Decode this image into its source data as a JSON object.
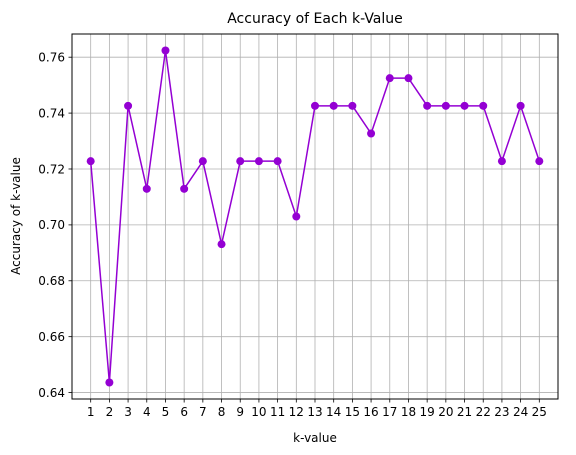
{
  "chart_data": {
    "type": "line",
    "title": "Accuracy of Each k-Value",
    "xlabel": "k-value",
    "ylabel": "Accuracy of k-value",
    "x": [
      1,
      2,
      3,
      4,
      5,
      6,
      7,
      8,
      9,
      10,
      11,
      12,
      13,
      14,
      15,
      16,
      17,
      18,
      19,
      20,
      21,
      22,
      23,
      24,
      25
    ],
    "xtick_labels": [
      "1",
      "2",
      "3",
      "4",
      "5",
      "6",
      "7",
      "8",
      "9",
      "10",
      "11",
      "12",
      "13",
      "14",
      "15",
      "16",
      "17",
      "18",
      "19",
      "20",
      "21",
      "22",
      "23",
      "24",
      "25"
    ],
    "series": [
      {
        "values": [
          0.7228,
          0.6436,
          0.7426,
          0.7129,
          0.7624,
          0.7129,
          0.7228,
          0.6931,
          0.7228,
          0.7228,
          0.7228,
          0.703,
          0.7426,
          0.7426,
          0.7426,
          0.7327,
          0.7525,
          0.7525,
          0.7426,
          0.7426,
          0.7426,
          0.7426,
          0.7228,
          0.7426,
          0.7228
        ],
        "color": "#9400D3",
        "marker": "circle"
      }
    ],
    "xlim": [
      0,
      26
    ],
    "ylim": [
      0.6377,
      0.7683
    ],
    "yticks": [
      0.64,
      0.66,
      0.68,
      0.7,
      0.72,
      0.74,
      0.76
    ],
    "ytick_labels": [
      "0.64",
      "0.66",
      "0.68",
      "0.70",
      "0.72",
      "0.74",
      "0.76"
    ],
    "grid": true,
    "legend": "none"
  }
}
